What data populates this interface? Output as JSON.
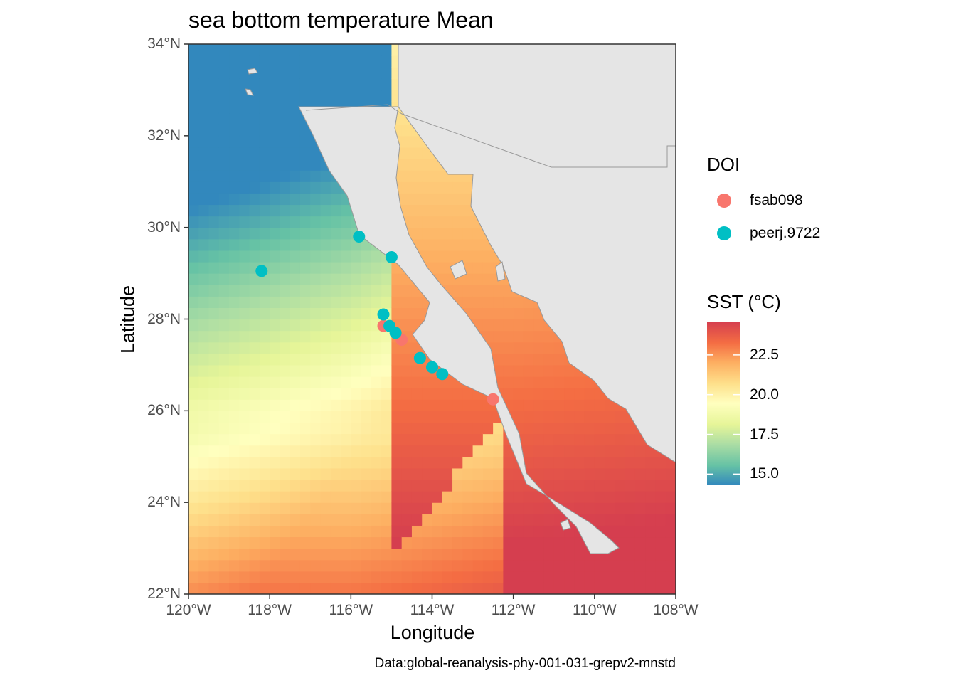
{
  "title": "sea bottom temperature Mean",
  "caption": "Data:global-reanalysis-phy-001-031-grepv2-mnstd",
  "map": {
    "xlabel": "Longitude",
    "ylabel": "Latitude",
    "xlim": [
      -120,
      -108
    ],
    "ylim": [
      22,
      34
    ],
    "x_ticks": [
      {
        "value": -120,
        "label": "120°W"
      },
      {
        "value": -118,
        "label": "118°W"
      },
      {
        "value": -116,
        "label": "116°W"
      },
      {
        "value": -114,
        "label": "114°W"
      },
      {
        "value": -112,
        "label": "112°W"
      },
      {
        "value": -110,
        "label": "110°W"
      },
      {
        "value": -108,
        "label": "108°W"
      }
    ],
    "y_ticks": [
      {
        "value": 22,
        "label": "22°N"
      },
      {
        "value": 24,
        "label": "24°N"
      },
      {
        "value": 26,
        "label": "26°N"
      },
      {
        "value": 28,
        "label": "28°N"
      },
      {
        "value": 30,
        "label": "30°N"
      },
      {
        "value": 32,
        "label": "32°N"
      },
      {
        "value": 34,
        "label": "34°N"
      }
    ],
    "land_color": "#e5e5e5",
    "border_color": "#999999"
  },
  "legend_points": {
    "title": "DOI",
    "items": [
      {
        "label": "fsab098",
        "color": "#f8766d"
      },
      {
        "label": "peerj.9722",
        "color": "#00bfc4"
      }
    ]
  },
  "legend_color": {
    "title": "SST (°C)",
    "min": 14.3,
    "max": 24.6,
    "ticks": [
      {
        "value": 15.0,
        "label": "15.0"
      },
      {
        "value": 17.5,
        "label": "17.5"
      },
      {
        "value": 20.0,
        "label": "20.0"
      },
      {
        "value": 22.5,
        "label": "22.5"
      }
    ],
    "palette": [
      "#3288bd",
      "#66c2a5",
      "#abdda4",
      "#e6f598",
      "#ffffbf",
      "#fee08b",
      "#fdae61",
      "#f46d43",
      "#d53e4f"
    ]
  },
  "chart_data": {
    "type": "scatter",
    "title": "sea bottom temperature Mean",
    "xlabel": "Longitude",
    "ylabel": "Latitude",
    "xlim": [
      -120,
      -108
    ],
    "ylim": [
      22,
      34
    ],
    "series": [
      {
        "name": "fsab098",
        "color": "#f8766d",
        "points": [
          {
            "lon": -115.2,
            "lat": 27.85
          },
          {
            "lon": -114.75,
            "lat": 27.55
          },
          {
            "lon": -112.5,
            "lat": 26.25
          }
        ]
      },
      {
        "name": "peerj.9722",
        "color": "#00bfc4",
        "points": [
          {
            "lon": -115.8,
            "lat": 29.8
          },
          {
            "lon": -115.0,
            "lat": 29.35
          },
          {
            "lon": -118.2,
            "lat": 29.05
          },
          {
            "lon": -115.2,
            "lat": 28.1
          },
          {
            "lon": -115.05,
            "lat": 27.85
          },
          {
            "lon": -114.9,
            "lat": 27.7
          },
          {
            "lon": -114.3,
            "lat": 27.15
          },
          {
            "lon": -114.0,
            "lat": 26.95
          },
          {
            "lon": -113.75,
            "lat": 26.8
          }
        ]
      }
    ]
  }
}
